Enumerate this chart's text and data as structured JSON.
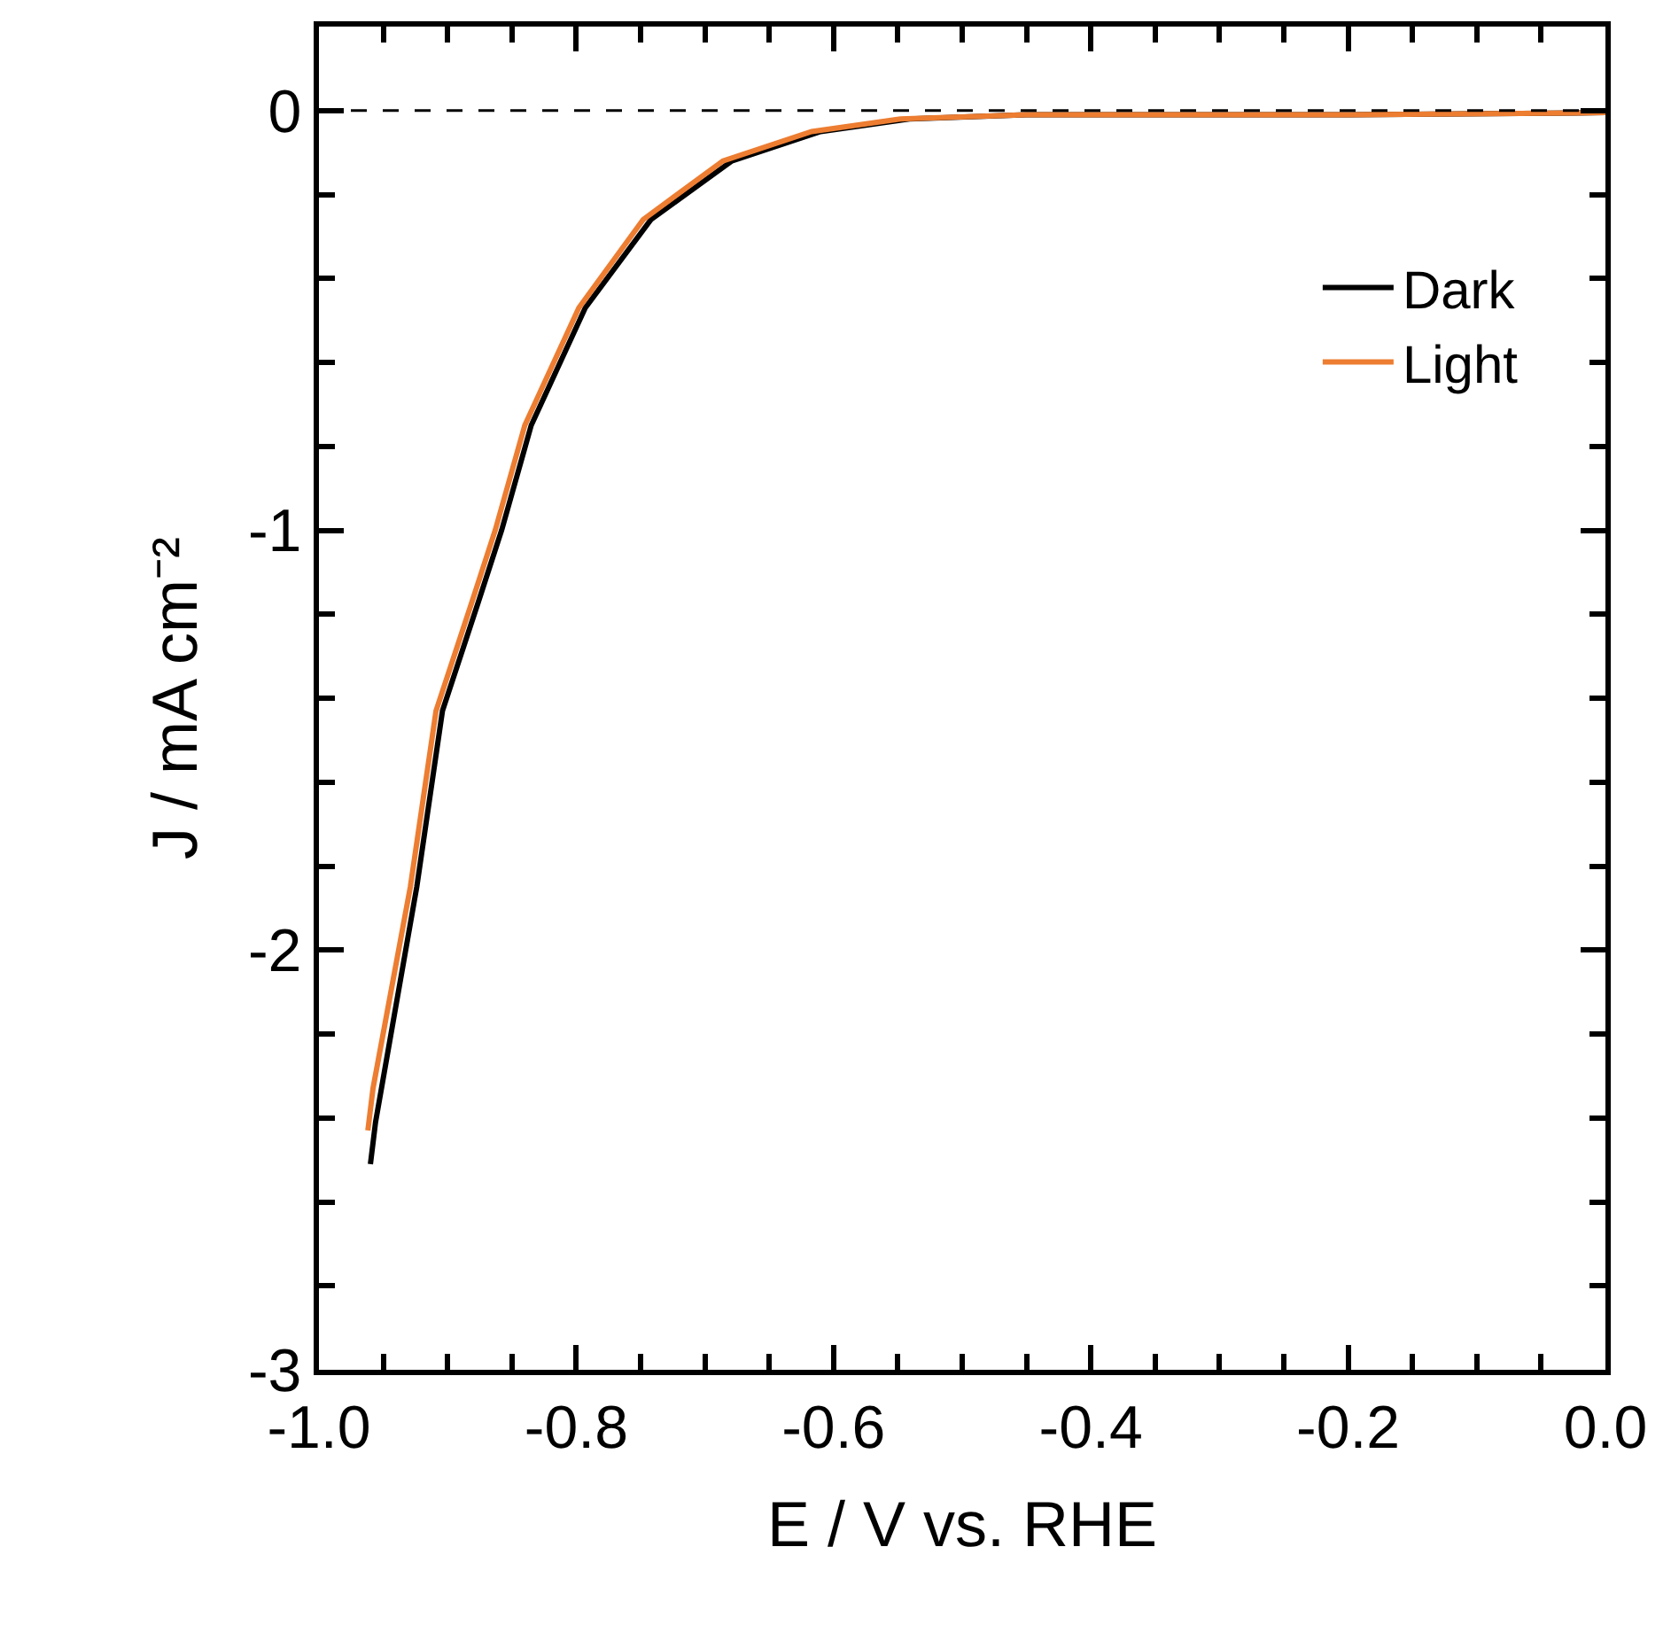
{
  "chart_data": {
    "type": "line",
    "xlabel": "E / V vs. RHE",
    "ylabel": "J / mA cm⁻²",
    "xlim": [
      -1,
      0
    ],
    "ylim": [
      -3,
      0.2
    ],
    "xticks": [
      {
        "value": -1,
        "label": "-1.0"
      },
      {
        "value": -0.95,
        "label": null
      },
      {
        "value": -0.9,
        "label": null
      },
      {
        "value": -0.85,
        "label": null
      },
      {
        "value": -0.8,
        "label": "-0.8"
      },
      {
        "value": -0.75,
        "label": null
      },
      {
        "value": -0.7,
        "label": null
      },
      {
        "value": -0.65,
        "label": null
      },
      {
        "value": -0.6,
        "label": "-0.6"
      },
      {
        "value": -0.55,
        "label": null
      },
      {
        "value": -0.5,
        "label": null
      },
      {
        "value": -0.45,
        "label": null
      },
      {
        "value": -0.4,
        "label": "-0.4"
      },
      {
        "value": -0.35,
        "label": null
      },
      {
        "value": -0.3,
        "label": null
      },
      {
        "value": -0.25,
        "label": null
      },
      {
        "value": -0.2,
        "label": "-0.2"
      },
      {
        "value": -0.15,
        "label": null
      },
      {
        "value": -0.1,
        "label": null
      },
      {
        "value": -0.05,
        "label": null
      },
      {
        "value": 0,
        "label": "0.0"
      }
    ],
    "yticks": [
      -3,
      {
        "value": -2.8,
        "label": null
      },
      {
        "value": -2.6,
        "label": null
      },
      {
        "value": -2.4,
        "label": null
      },
      {
        "value": -2.2,
        "label": null
      },
      -2,
      {
        "value": -1.8,
        "label": null
      },
      {
        "value": -1.6,
        "label": null
      },
      {
        "value": -1.4,
        "label": null
      },
      {
        "value": -1.2,
        "label": null
      },
      -1,
      {
        "value": -0.8,
        "label": null
      },
      {
        "value": -0.6,
        "label": null
      },
      {
        "value": -0.4,
        "label": null
      },
      {
        "value": -0.2,
        "label": null
      },
      0
    ],
    "grid": false,
    "legend": "top right",
    "marker": "none",
    "line_style": "solid",
    "ref_lines": [
      {
        "axis": "y",
        "value": 0,
        "color": "#000000",
        "line_style": "dashed"
      }
    ],
    "series": [
      {
        "name": "Dark",
        "color": "#000000",
        "x": [
          -0.96,
          -0.956,
          -0.924,
          -0.904,
          -0.876,
          -0.858,
          -0.835,
          -0.793,
          -0.742,
          -0.679,
          -0.61,
          -0.541,
          -0.45,
          -0.2,
          0
        ],
        "values": [
          -2.51,
          -2.41,
          -1.85,
          -1.43,
          -1.17,
          -1.0,
          -0.75,
          -0.47,
          -0.26,
          -0.12,
          -0.05,
          -0.02,
          -0.01,
          -0.01,
          -0.005
        ]
      },
      {
        "name": "Light",
        "color": "#ed7d31",
        "x": [
          -0.962,
          -0.958,
          -0.929,
          -0.909,
          -0.881,
          -0.863,
          -0.84,
          -0.798,
          -0.748,
          -0.686,
          -0.617,
          -0.548,
          -0.45,
          -0.2,
          0
        ],
        "values": [
          -2.43,
          -2.33,
          -1.85,
          -1.43,
          -1.17,
          -1.0,
          -0.75,
          -0.47,
          -0.26,
          -0.12,
          -0.05,
          -0.02,
          -0.01,
          -0.01,
          -0.005
        ]
      }
    ]
  }
}
